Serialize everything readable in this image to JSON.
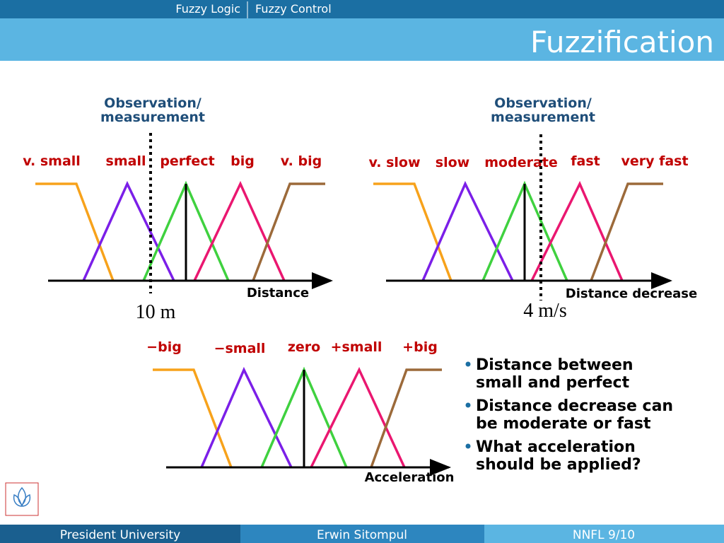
{
  "header": {
    "breadcrumbs": [
      "Fuzzy Logic",
      "Fuzzy Control"
    ],
    "title": "Fuzzification"
  },
  "diagrams": [
    {
      "heading": [
        "Observation/",
        "measurement"
      ],
      "labels": [
        "v. small",
        "small",
        "perfect",
        "big",
        "v. big"
      ],
      "axis_label": "Distance",
      "reading": "10 m"
    },
    {
      "heading": [
        "Observation/",
        "measurement"
      ],
      "labels": [
        "v. slow",
        "slow",
        "moderate",
        "fast",
        "very fast"
      ],
      "axis_label": "Distance decrease",
      "reading": "4 m/s"
    },
    {
      "labels": [
        "−big",
        "−small",
        "zero",
        "+small",
        "+big"
      ],
      "axis_label": "Acceleration"
    }
  ],
  "bullets": [
    [
      "Distance between",
      "small and perfect"
    ],
    [
      "Distance decrease can",
      "be moderate or fast"
    ],
    [
      "What acceleration",
      "should be applied?"
    ]
  ],
  "footer": [
    "President University",
    "Erwin Sitompul",
    "NNFL 9/10"
  ]
}
